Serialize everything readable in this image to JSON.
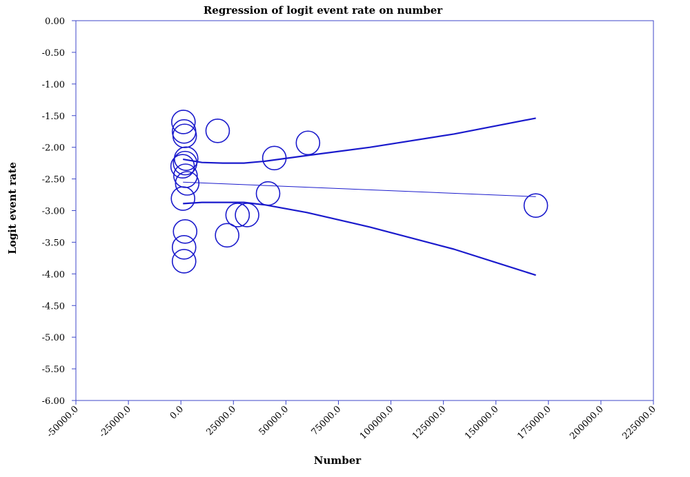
{
  "chart_data": {
    "type": "scatter",
    "title": "Regression of logit event rate on number",
    "xlabel": "Number",
    "ylabel": "Logit event rate",
    "xlim": [
      -50000,
      225000
    ],
    "ylim": [
      -6.0,
      0.0
    ],
    "x_ticks": [
      "-50000.0",
      "-25000.0",
      "0.0",
      "25000.0",
      "50000.0",
      "75000.0",
      "100000.0",
      "125000.0",
      "150000.0",
      "175000.0",
      "200000.0",
      "225000.0"
    ],
    "y_ticks": [
      "0.00",
      "-0.50",
      "-1.00",
      "-1.50",
      "-2.00",
      "-2.50",
      "-3.00",
      "-3.50",
      "-4.00",
      "-4.50",
      "-5.00",
      "-5.50",
      "-6.00"
    ],
    "grid": false,
    "colors": {
      "series": "#1a1acc",
      "frame": "#3c46c8"
    },
    "points": [
      {
        "x": 1200,
        "y": -1.6
      },
      {
        "x": 1500,
        "y": -1.75
      },
      {
        "x": 1800,
        "y": -1.82
      },
      {
        "x": 17500,
        "y": -1.74
      },
      {
        "x": 60500,
        "y": -1.93
      },
      {
        "x": 44500,
        "y": -2.17
      },
      {
        "x": 2500,
        "y": -2.18
      },
      {
        "x": 2000,
        "y": -2.25
      },
      {
        "x": 800,
        "y": -2.3
      },
      {
        "x": 2200,
        "y": -2.45
      },
      {
        "x": 3000,
        "y": -2.57
      },
      {
        "x": 41500,
        "y": -2.73
      },
      {
        "x": 1000,
        "y": -2.81
      },
      {
        "x": 169000,
        "y": -2.92
      },
      {
        "x": 27000,
        "y": -3.07
      },
      {
        "x": 31500,
        "y": -3.07
      },
      {
        "x": 2000,
        "y": -3.33
      },
      {
        "x": 22000,
        "y": -3.39
      },
      {
        "x": 1500,
        "y": -3.58
      },
      {
        "x": 1500,
        "y": -3.8
      }
    ],
    "regression_line": [
      [
        1000,
        -2.55
      ],
      [
        169000,
        -2.78
      ]
    ],
    "ci_upper": [
      [
        1000,
        -2.19
      ],
      [
        10000,
        -2.24
      ],
      [
        20000,
        -2.25
      ],
      [
        30000,
        -2.25
      ],
      [
        40000,
        -2.22
      ],
      [
        60000,
        -2.13
      ],
      [
        90000,
        -2.0
      ],
      [
        130000,
        -1.79
      ],
      [
        169000,
        -1.54
      ]
    ],
    "ci_lower": [
      [
        1000,
        -2.89
      ],
      [
        10000,
        -2.87
      ],
      [
        20000,
        -2.87
      ],
      [
        30000,
        -2.87
      ],
      [
        40000,
        -2.91
      ],
      [
        60000,
        -3.03
      ],
      [
        90000,
        -3.26
      ],
      [
        130000,
        -3.61
      ],
      [
        169000,
        -4.02
      ]
    ]
  }
}
